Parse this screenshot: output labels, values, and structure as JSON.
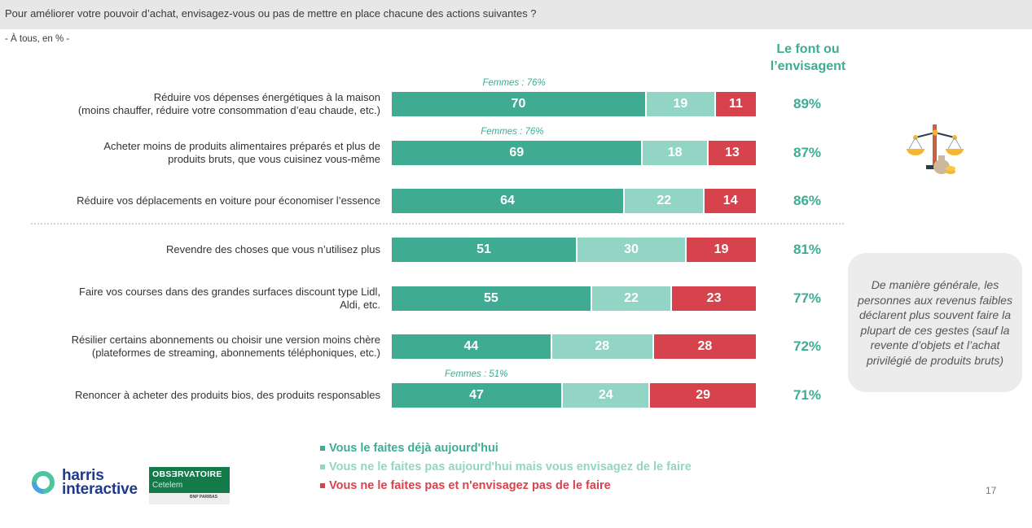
{
  "header": {
    "question": "Pour améliorer votre pouvoir d’achat, envisagez-vous ou pas de mettre en place chacune des actions suivantes ?",
    "base": "- À tous, en % -"
  },
  "column_header": "Le font ou l’envisagent",
  "colors": {
    "already": "#3fab93",
    "considering": "#92d5c5",
    "not": "#d7434c",
    "accent_text": "#3fab93"
  },
  "chart_data": {
    "type": "bar",
    "orientation": "horizontal",
    "stacked": true,
    "title": "Pour améliorer votre pouvoir d’achat, envisagez-vous ou pas de mettre en place chacune des actions suivantes ?",
    "subtitle": "- À tous, en % -",
    "xlim": [
      0,
      100
    ],
    "categories": [
      "Réduire vos dépenses énergétiques à la maison\n(moins chauffer, réduire votre consommation d’eau chaude, etc.)",
      "Acheter moins de produits alimentaires préparés et plus de\nproduits bruts, que vous cuisinez vous-même",
      "Réduire vos déplacements en voiture pour économiser l’essence",
      "Revendre des choses que vous n’utilisez plus",
      "Faire vos courses dans des grandes surfaces discount type Lidl,\nAldi, etc.",
      "Résilier certains abonnements ou choisir une version moins chère\n(plateformes de streaming, abonnements téléphoniques, etc.)",
      "Renoncer à acheter des produits bios, des produits responsables"
    ],
    "series": [
      {
        "name": "Vous le faites déjà aujourd'hui",
        "color": "#3fab93",
        "values": [
          70,
          69,
          64,
          51,
          55,
          44,
          47
        ]
      },
      {
        "name": "Vous ne le faites pas aujourd'hui mais vous envisagez de le faire",
        "color": "#92d5c5",
        "values": [
          19,
          18,
          22,
          30,
          22,
          28,
          24
        ]
      },
      {
        "name": "Vous ne le faites pas et n'envisagez pas de le faire",
        "color": "#d7434c",
        "values": [
          11,
          13,
          14,
          19,
          23,
          28,
          29
        ]
      }
    ],
    "totals_label": "Le font ou l’envisagent",
    "totals": [
      "89%",
      "87%",
      "86%",
      "81%",
      "77%",
      "72%",
      "71%"
    ],
    "annotations": [
      "Femmes : 76%",
      "Femmes : 76%",
      "",
      "",
      "",
      "",
      "Femmes : 51%"
    ],
    "legend_position": "bottom"
  },
  "note": "De manière générale, les personnes aux revenus faibles déclarent plus souvent faire la plupart de ces gestes (sauf la revente d’objets et l’achat privilégié de produits bruts)",
  "logos": {
    "harris_line1": "harris",
    "harris_line2": "interactive",
    "obs_title": "OBSƎRVATOIRE",
    "obs_sub": "Cetelem",
    "obs_partner": "BNP PARIBAS"
  },
  "icons": {
    "illustration": "scale-of-justice-money-icon"
  },
  "page_number": "17"
}
